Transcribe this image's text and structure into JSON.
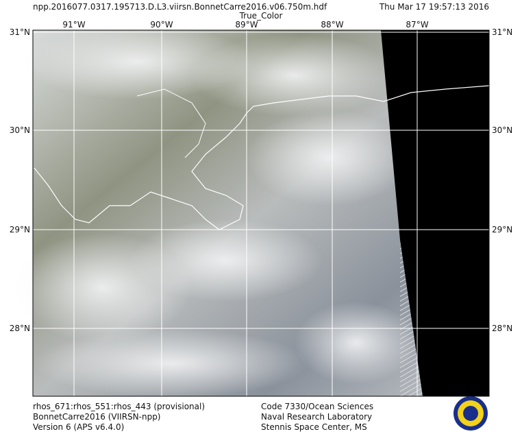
{
  "header": {
    "filename": "npp.2016077.0317.195713.D.L3.viirsn.BonnetCarre2016.v06.750m.hdf",
    "timestamp": "Thu Mar 17 19:57:13 2016",
    "product": "True_Color"
  },
  "map": {
    "longitude_labels": [
      "91°W",
      "90°W",
      "89°W",
      "88°W",
      "87°W"
    ],
    "latitude_labels": [
      "31°N",
      "30°N",
      "29°N",
      "28°N"
    ]
  },
  "footer": {
    "left": [
      "rhos_671:rhos_551:rhos_443 (provisional)",
      "BonnetCarre2016 (VIIRSN-npp)",
      "Version 6 (APS v6.4.0)"
    ],
    "center": [
      "Code 7330/Ocean Sciences",
      "Naval Research Laboratory",
      "Stennis Space Center, MS"
    ]
  }
}
